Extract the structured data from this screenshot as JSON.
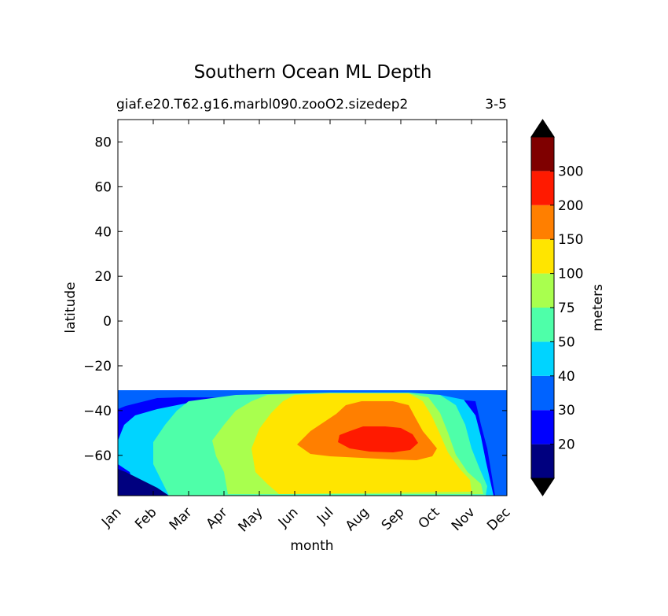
{
  "chart_data": {
    "type": "contour",
    "title": "Southern Ocean ML Depth",
    "subtitle_left": "giaf.e20.T62.g16.marbl090.zooO2.sizedep2",
    "subtitle_right": "3-5",
    "xlabel": "month",
    "ylabel": "latitude",
    "x_ticklabels": [
      "Jan",
      "Feb",
      "Mar",
      "Apr",
      "May",
      "Jun",
      "Jul",
      "Aug",
      "Sep",
      "Oct",
      "Nov",
      "Dec"
    ],
    "x_range": [
      1,
      12
    ],
    "y_ticks": [
      80,
      60,
      40,
      20,
      0,
      -20,
      -40,
      -60
    ],
    "y_ticklabels": [
      "80",
      "60",
      "40",
      "20",
      "0",
      "−20",
      "−40",
      "−60"
    ],
    "ylim": [
      -78,
      90
    ],
    "data_lat_range": [
      -78,
      -31.5
    ],
    "colorbar": {
      "label": "meters",
      "levels": [
        20,
        30,
        40,
        50,
        75,
        100,
        150,
        200,
        300
      ],
      "level_labels": [
        "20",
        "30",
        "40",
        "50",
        "75",
        "100",
        "150",
        "200",
        "300"
      ],
      "extend": "both",
      "colors": [
        "#00007f",
        "#0000ff",
        "#0063ff",
        "#00d4ff",
        "#4effa9",
        "#a9ff4e",
        "#ffe500",
        "#ff7f00",
        "#ff1a00",
        "#7f0000"
      ],
      "under_color": "#000000",
      "over_color": "#000000"
    },
    "regions": [
      {
        "range": "20-30",
        "months": [
          1,
          1.7
        ],
        "lat": [
          -78,
          -66
        ]
      },
      {
        "range": "40-50",
        "months": [
          1.5,
          3
        ],
        "lat": [
          -70,
          -40
        ]
      },
      {
        "range": "50-75",
        "months": [
          2.5,
          4.5
        ],
        "lat": [
          -75,
          -36
        ]
      },
      {
        "range": "75-100",
        "months": [
          4.5,
          5.5
        ],
        "lat": [
          -75,
          -34
        ]
      },
      {
        "range": "100-150",
        "months": [
          5.5,
          10.5
        ],
        "lat": [
          -76,
          -33
        ]
      },
      {
        "range": "150-200",
        "months": [
          6.7,
          9.5
        ],
        "lat": [
          -62,
          -36
        ]
      },
      {
        "range": "200-300",
        "months": [
          7.7,
          9
        ],
        "lat": [
          -58,
          -51
        ]
      },
      {
        "range": "30-40",
        "months": [
          10.5,
          11.5
        ],
        "lat": [
          -78,
          -34
        ]
      },
      {
        "range": "20-30",
        "months": [
          11.5,
          12
        ],
        "lat": [
          -78,
          -32
        ]
      }
    ]
  }
}
